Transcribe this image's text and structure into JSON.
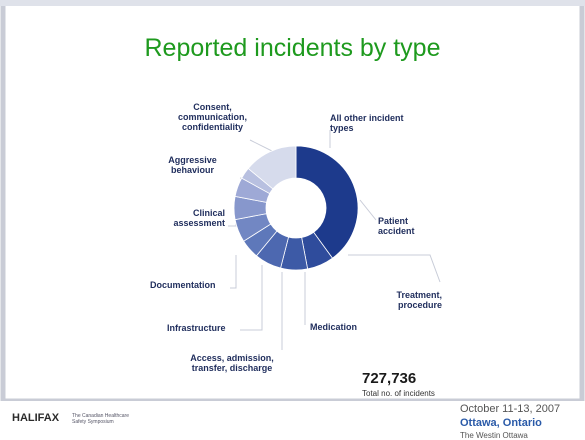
{
  "chart_data": {
    "type": "donut",
    "title": "Reported incidents by type",
    "categories": [
      "Patient accident",
      "Treatment, procedure",
      "Medication",
      "Access, admission, transfer, discharge",
      "Infrastructure",
      "Documentation",
      "Clinical assessment",
      "Aggressive behaviour",
      "Consent, communication, confidentiality",
      "All other incident types"
    ],
    "values": [
      40,
      7,
      7,
      7,
      5,
      6,
      6,
      5,
      3,
      14
    ],
    "colors": [
      "#1d3a8c",
      "#2f4c9c",
      "#3d5aa6",
      "#4d68b0",
      "#5e78ba",
      "#7287c3",
      "#8797cc",
      "#9ea9d6",
      "#b8c0e0",
      "#d6dbec"
    ],
    "total": "727,736",
    "total_label": "Total no. of incidents",
    "logo": "HALIFAX",
    "logo_tagline": "The Canadian Healthcare Safety Symposium",
    "event_dates": "October 11-13, 2007",
    "event_city": "Ottawa, Ontario",
    "event_venue": "The Westin Ottawa"
  }
}
